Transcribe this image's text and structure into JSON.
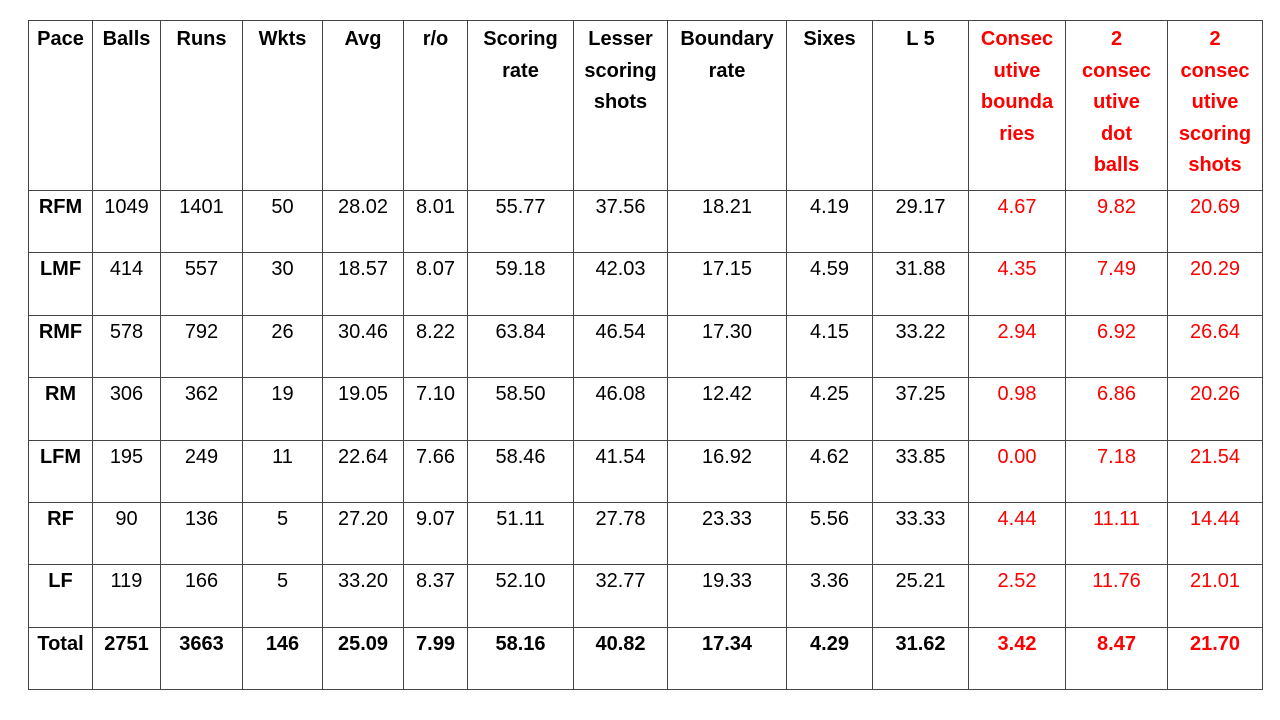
{
  "colors": {
    "background": "#FFFFFF",
    "text": "#000000",
    "highlight_red": "#FF0000",
    "border": "#454545"
  },
  "table": {
    "red_value_start_index": 10,
    "columns": [
      {
        "id": "pace",
        "label": "Pace",
        "red": false
      },
      {
        "id": "balls",
        "label": "Balls",
        "red": false
      },
      {
        "id": "runs",
        "label": "Runs",
        "red": false
      },
      {
        "id": "wkts",
        "label": "Wkts",
        "red": false
      },
      {
        "id": "avg",
        "label": "Avg",
        "red": false
      },
      {
        "id": "run-rate",
        "label": "r/o",
        "red": false
      },
      {
        "id": "scoring-rate",
        "label": "Scoring\nrate",
        "red": false
      },
      {
        "id": "lesser-scoring-shots",
        "label": "Lesser\nscoring\nshots",
        "red": false
      },
      {
        "id": "boundary-rate",
        "label": "Boundary\nrate",
        "red": false
      },
      {
        "id": "sixes",
        "label": "Sixes",
        "red": false
      },
      {
        "id": "l5",
        "label": "L 5",
        "red": false
      },
      {
        "id": "consecutive-boundaries",
        "label": "Consec\nutive\nbounda\nries",
        "red": true
      },
      {
        "id": "2-consecutive-dot-balls",
        "label": "2\nconsec\nutive\ndot\nballs",
        "red": true
      },
      {
        "id": "2-consecutive-scoring-shots",
        "label": "2\nconsec\nutive\nscoring\nshots",
        "red": true
      }
    ],
    "rows": [
      {
        "pace": "RFM",
        "bold": false,
        "values": [
          "1049",
          "1401",
          "50",
          "28.02",
          "8.01",
          "55.77",
          "37.56",
          "18.21",
          "4.19",
          "29.17",
          "4.67",
          "9.82",
          "20.69"
        ]
      },
      {
        "pace": "LMF",
        "bold": false,
        "values": [
          "414",
          "557",
          "30",
          "18.57",
          "8.07",
          "59.18",
          "42.03",
          "17.15",
          "4.59",
          "31.88",
          "4.35",
          "7.49",
          "20.29"
        ]
      },
      {
        "pace": "RMF",
        "bold": false,
        "values": [
          "578",
          "792",
          "26",
          "30.46",
          "8.22",
          "63.84",
          "46.54",
          "17.30",
          "4.15",
          "33.22",
          "2.94",
          "6.92",
          "26.64"
        ]
      },
      {
        "pace": "RM",
        "bold": false,
        "values": [
          "306",
          "362",
          "19",
          "19.05",
          "7.10",
          "58.50",
          "46.08",
          "12.42",
          "4.25",
          "37.25",
          "0.98",
          "6.86",
          "20.26"
        ]
      },
      {
        "pace": "LFM",
        "bold": false,
        "values": [
          "195",
          "249",
          "11",
          "22.64",
          "7.66",
          "58.46",
          "41.54",
          "16.92",
          "4.62",
          "33.85",
          "0.00",
          "7.18",
          "21.54"
        ]
      },
      {
        "pace": "RF",
        "bold": false,
        "values": [
          "90",
          "136",
          "5",
          "27.20",
          "9.07",
          "51.11",
          "27.78",
          "23.33",
          "5.56",
          "33.33",
          "4.44",
          "11.11",
          "14.44"
        ]
      },
      {
        "pace": "LF",
        "bold": false,
        "values": [
          "119",
          "166",
          "5",
          "33.20",
          "8.37",
          "52.10",
          "32.77",
          "19.33",
          "3.36",
          "25.21",
          "2.52",
          "11.76",
          "21.01"
        ]
      },
      {
        "pace": "Total",
        "bold": true,
        "values": [
          "2751",
          "3663",
          "146",
          "25.09",
          "7.99",
          "58.16",
          "40.82",
          "17.34",
          "4.29",
          "31.62",
          "3.42",
          "8.47",
          "21.70"
        ]
      }
    ]
  },
  "chart_data": {
    "type": "table",
    "columns": [
      "Pace",
      "Balls",
      "Runs",
      "Wkts",
      "Avg",
      "r/o",
      "Scoring rate",
      "Lesser scoring shots",
      "Boundary rate",
      "Sixes",
      "L 5",
      "Consecutive boundaries",
      "2 consecutive dot balls",
      "2 consecutive scoring shots"
    ],
    "rows": [
      [
        "RFM",
        1049,
        1401,
        50,
        28.02,
        8.01,
        55.77,
        37.56,
        18.21,
        4.19,
        29.17,
        4.67,
        9.82,
        20.69
      ],
      [
        "LMF",
        414,
        557,
        30,
        18.57,
        8.07,
        59.18,
        42.03,
        17.15,
        4.59,
        31.88,
        4.35,
        7.49,
        20.29
      ],
      [
        "RMF",
        578,
        792,
        26,
        30.46,
        8.22,
        63.84,
        46.54,
        17.3,
        4.15,
        33.22,
        2.94,
        6.92,
        26.64
      ],
      [
        "RM",
        306,
        362,
        19,
        19.05,
        7.1,
        58.5,
        46.08,
        12.42,
        4.25,
        37.25,
        0.98,
        6.86,
        20.26
      ],
      [
        "LFM",
        195,
        249,
        11,
        22.64,
        7.66,
        58.46,
        41.54,
        16.92,
        4.62,
        33.85,
        0.0,
        7.18,
        21.54
      ],
      [
        "RF",
        90,
        136,
        5,
        27.2,
        9.07,
        51.11,
        27.78,
        23.33,
        5.56,
        33.33,
        4.44,
        11.11,
        14.44
      ],
      [
        "LF",
        119,
        166,
        5,
        33.2,
        8.37,
        52.1,
        32.77,
        19.33,
        3.36,
        25.21,
        2.52,
        11.76,
        21.01
      ],
      [
        "Total",
        2751,
        3663,
        146,
        25.09,
        7.99,
        58.16,
        40.82,
        17.34,
        4.29,
        31.62,
        3.42,
        8.47,
        21.7
      ]
    ],
    "layout_hints": {
      "red_columns": [
        "Consecutive boundaries",
        "2 consecutive dot balls",
        "2 consecutive scoring shots"
      ],
      "bold_rows": [
        "Total"
      ],
      "grid": true
    }
  }
}
